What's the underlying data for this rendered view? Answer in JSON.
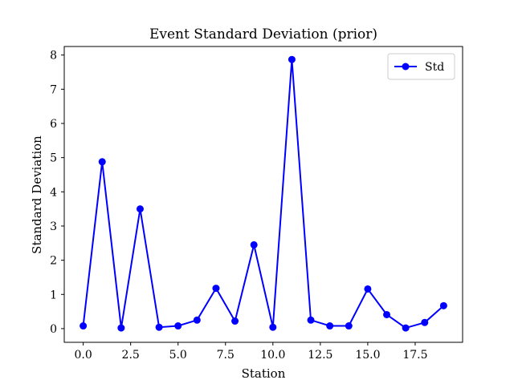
{
  "chart_data": {
    "type": "line",
    "title": "Event Standard Deviation (prior)",
    "xlabel": "Station",
    "ylabel": "Standard Deviation",
    "xlim": [
      -1,
      20
    ],
    "ylim": [
      -0.4,
      8.25
    ],
    "xticks": [
      0.0,
      2.5,
      5.0,
      7.5,
      10.0,
      12.5,
      15.0,
      17.5
    ],
    "xtick_labels": [
      "0.0",
      "2.5",
      "5.0",
      "7.5",
      "10.0",
      "12.5",
      "15.0",
      "17.5"
    ],
    "yticks": [
      0,
      1,
      2,
      3,
      4,
      5,
      6,
      7,
      8
    ],
    "ytick_labels": [
      "0",
      "1",
      "2",
      "3",
      "4",
      "5",
      "6",
      "7",
      "8"
    ],
    "grid": false,
    "legend_position": "top-right",
    "colors": {
      "series": "#0000ff",
      "axes": "#000000",
      "background": "#ffffff"
    },
    "series": [
      {
        "name": "Std",
        "marker": "circle",
        "x": [
          0,
          1,
          2,
          3,
          4,
          5,
          6,
          7,
          8,
          9,
          10,
          11,
          12,
          13,
          14,
          15,
          16,
          17,
          18,
          19
        ],
        "y": [
          0.08,
          4.88,
          0.02,
          3.5,
          0.04,
          0.08,
          0.25,
          1.18,
          0.22,
          2.45,
          0.04,
          7.87,
          0.25,
          0.08,
          0.08,
          1.16,
          0.41,
          0.02,
          0.18,
          0.67
        ]
      }
    ]
  }
}
